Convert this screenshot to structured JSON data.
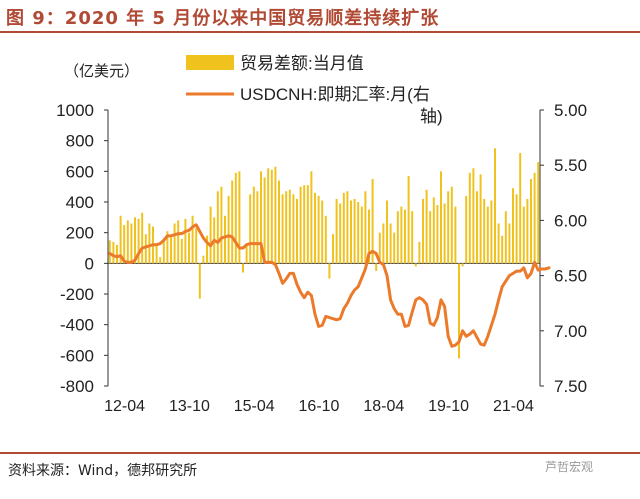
{
  "title": "图 9：2020 年 5 月份以来中国贸易顺差持续扩张",
  "source": "资料来源：Wind，德邦研究所",
  "watermark": "芦哲宏观",
  "colors": {
    "title": "#b14a35",
    "bar": "#f0c21e",
    "line": "#ec7a2b",
    "axis": "#333333"
  },
  "chart_data": {
    "type": "bar+line",
    "unit_left": "（亿美元）",
    "yleft": {
      "min": -800,
      "max": 1000,
      "step": 200,
      "ticks": [
        "1000",
        "800",
        "600",
        "400",
        "200",
        "0",
        "-200",
        "-400",
        "-600",
        "-800"
      ]
    },
    "yright": {
      "min": 5.0,
      "max": 7.5,
      "inverted": true,
      "ticks": [
        "5.00",
        "5.50",
        "6.00",
        "6.50",
        "7.00",
        "7.50"
      ]
    },
    "x_tick_labels": [
      "12-04",
      "13-10",
      "15-04",
      "16-10",
      "18-04",
      "19-10",
      "21-04"
    ],
    "start_month": "2012-01",
    "series": [
      {
        "name": "贸易差额:当月值",
        "axis": "left",
        "kind": "bar",
        "values": [
          150,
          140,
          120,
          310,
          250,
          280,
          260,
          300,
          290,
          330,
          190,
          260,
          240,
          120,
          40,
          160,
          210,
          170,
          260,
          280,
          160,
          290,
          200,
          310,
          230,
          -230,
          50,
          180,
          370,
          300,
          470,
          500,
          310,
          440,
          540,
          590,
          600,
          -60,
          120,
          450,
          500,
          470,
          600,
          560,
          620,
          610,
          630,
          540,
          450,
          470,
          480,
          450,
          420,
          500,
          510,
          510,
          600,
          460,
          440,
          410,
          310,
          -100,
          190,
          420,
          390,
          460,
          470,
          410,
          420,
          400,
          370,
          470,
          350,
          550,
          -50,
          200,
          260,
          410,
          260,
          200,
          340,
          370,
          350,
          570,
          340,
          -20,
          140,
          420,
          480,
          340,
          430,
          380,
          600,
          390,
          470,
          500,
          370,
          -620,
          -20,
          440,
          590,
          620,
          470,
          580,
          420,
          370,
          410,
          750,
          260,
          180,
          340,
          260,
          490,
          450,
          720,
          370,
          420,
          550,
          590,
          660
        ]
      },
      {
        "name": "USDCNH:即期汇率:月(右轴)",
        "axis": "right",
        "kind": "line",
        "values": [
          6.3,
          6.32,
          6.33,
          6.32,
          6.37,
          6.38,
          6.38,
          6.36,
          6.3,
          6.25,
          6.24,
          6.23,
          6.22,
          6.22,
          6.21,
          6.18,
          6.14,
          6.14,
          6.13,
          6.12,
          6.12,
          6.1,
          6.09,
          6.06,
          6.04,
          6.1,
          6.16,
          6.2,
          6.23,
          6.18,
          6.2,
          6.16,
          6.15,
          6.14,
          6.15,
          6.2,
          6.25,
          6.25,
          6.22,
          6.21,
          6.21,
          6.21,
          6.21,
          6.38,
          6.38,
          6.38,
          6.4,
          6.48,
          6.57,
          6.53,
          6.48,
          6.48,
          6.58,
          6.65,
          6.7,
          6.65,
          6.68,
          6.85,
          6.96,
          6.95,
          6.87,
          6.88,
          6.89,
          6.9,
          6.89,
          6.8,
          6.75,
          6.68,
          6.63,
          6.6,
          6.52,
          6.44,
          6.3,
          6.28,
          6.3,
          6.38,
          6.4,
          6.5,
          6.72,
          6.8,
          6.85,
          6.85,
          6.96,
          6.95,
          6.83,
          6.72,
          6.7,
          6.72,
          6.76,
          6.93,
          6.95,
          6.88,
          6.72,
          6.78,
          7.05,
          7.14,
          7.13,
          7.1,
          7.0,
          7.05,
          7.03,
          7.0,
          7.06,
          7.12,
          7.13,
          7.05,
          6.95,
          6.85,
          6.72,
          6.6,
          6.55,
          6.5,
          6.48,
          6.46,
          6.46,
          6.43,
          6.52,
          6.48,
          6.38,
          6.45,
          6.44,
          6.44,
          6.43
        ]
      }
    ]
  }
}
